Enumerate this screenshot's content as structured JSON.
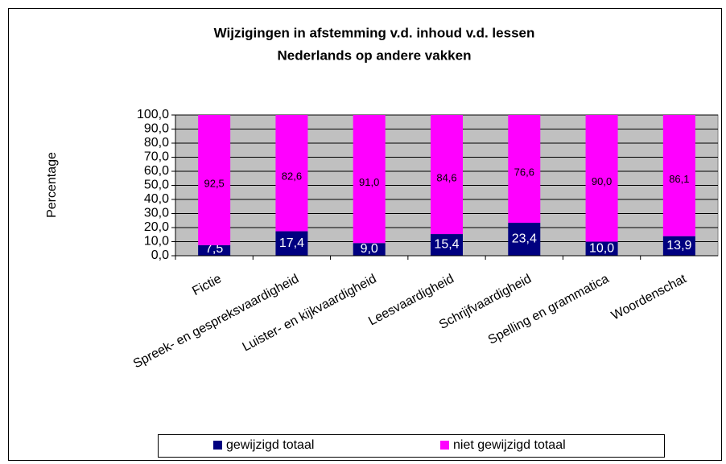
{
  "chart_data": {
    "type": "stacked_bar",
    "title": [
      "Wijzigingen in afstemming v.d. inhoud v.d. lessen",
      "Nederlands op andere vakken"
    ],
    "ylabel": "Percentage",
    "categories": [
      "Fictie",
      "Spreek- en gespreksvaardigheid",
      "Luister- en kijkvaardigheid",
      "Leesvaardigheid",
      "Schrijfvaardigheid",
      "Spelling en grammatica",
      "Woordenschat"
    ],
    "series": [
      {
        "name": "gewijzigd totaal",
        "color": "#000080",
        "values": [
          7.5,
          17.4,
          9.0,
          15.4,
          23.4,
          10.0,
          13.9
        ],
        "value_labels": [
          "7,5",
          "17,4",
          "9,0",
          "15,4",
          "23,4",
          "10,0",
          "13,9"
        ]
      },
      {
        "name": "niet gewijzigd totaal",
        "color": "#ff00ff",
        "values": [
          92.5,
          82.6,
          91.0,
          84.6,
          76.6,
          90.0,
          86.1
        ],
        "value_labels": [
          "92,5",
          "82,6",
          "91,0",
          "84,6",
          "76,6",
          "90,0",
          "86,1"
        ]
      }
    ],
    "ylim": [
      0,
      100
    ],
    "yticks": [
      {
        "value": 0,
        "label": "0,0"
      },
      {
        "value": 10,
        "label": "10,0"
      },
      {
        "value": 20,
        "label": "20,0"
      },
      {
        "value": 30,
        "label": "30,0"
      },
      {
        "value": 40,
        "label": "40,0"
      },
      {
        "value": 50,
        "label": "50,0"
      },
      {
        "value": 60,
        "label": "60,0"
      },
      {
        "value": 70,
        "label": "70,0"
      },
      {
        "value": 80,
        "label": "80,0"
      },
      {
        "value": 90,
        "label": "90,0"
      },
      {
        "value": 100,
        "label": "100,0"
      }
    ],
    "grid": true,
    "plot_background": "#c0c0c0",
    "legend": "bottom"
  }
}
